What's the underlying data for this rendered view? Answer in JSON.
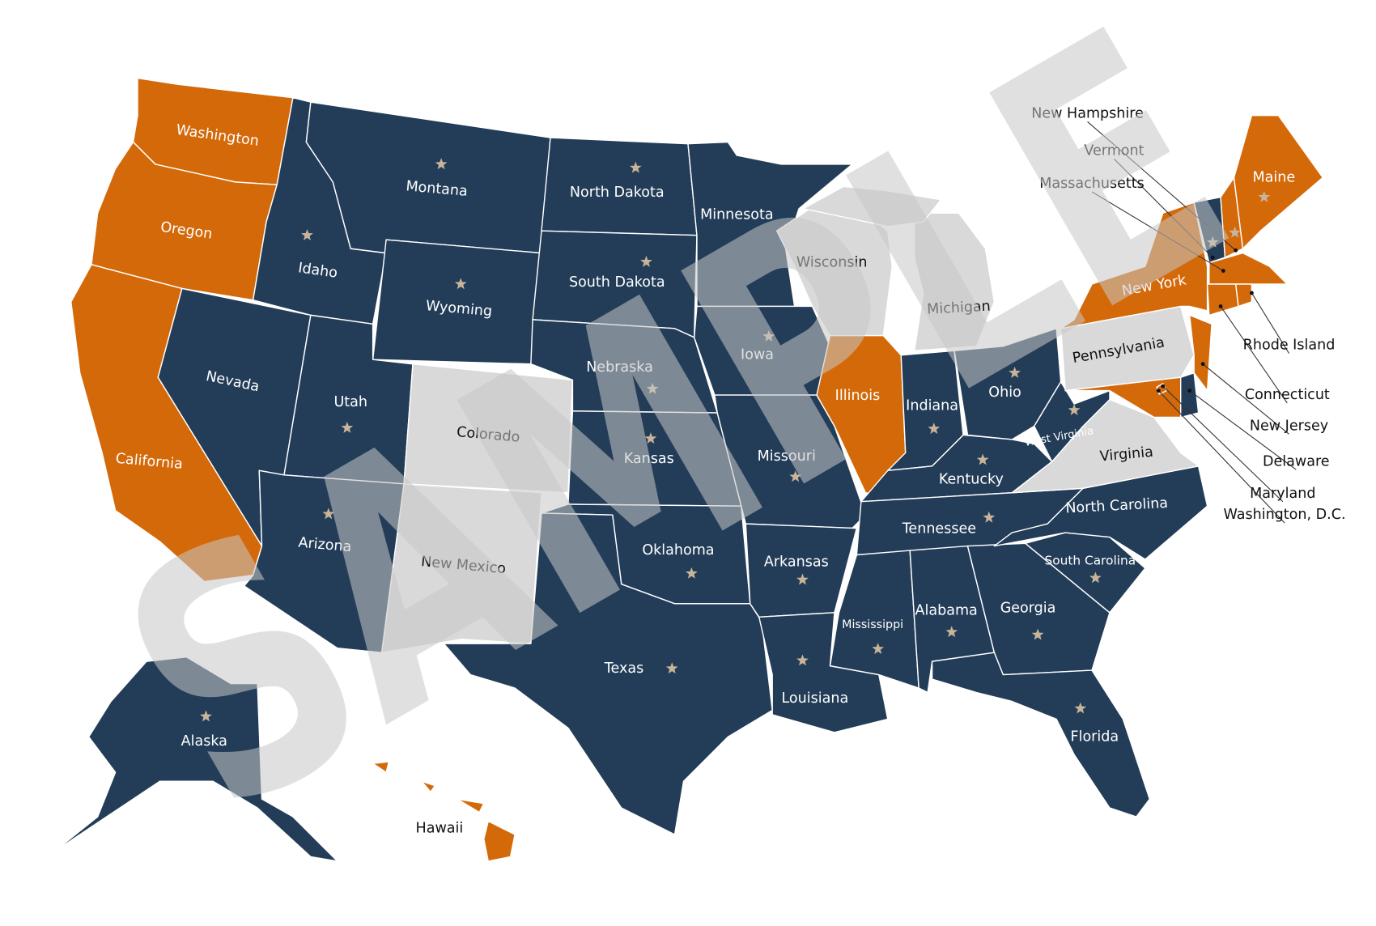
{
  "watermark": "SAMPLE",
  "states": [
    {
      "name": "Washington",
      "color": "#d4690a"
    },
    {
      "name": "Oregon",
      "color": "#d4690a"
    },
    {
      "name": "California",
      "color": "#d4690a"
    },
    {
      "name": "Idaho",
      "color": "#233d58"
    },
    {
      "name": "Nevada",
      "color": "#233d58"
    },
    {
      "name": "Montana",
      "color": "#233d58"
    },
    {
      "name": "Wyoming",
      "color": "#233d58"
    },
    {
      "name": "Utah",
      "color": "#233d58"
    },
    {
      "name": "Arizona",
      "color": "#233d58"
    },
    {
      "name": "Colorado",
      "color": "#d9d9d9"
    },
    {
      "name": "New Mexico",
      "color": "#d9d9d9"
    },
    {
      "name": "North Dakota",
      "color": "#233d58"
    },
    {
      "name": "South Dakota",
      "color": "#233d58"
    },
    {
      "name": "Nebraska",
      "color": "#233d58"
    },
    {
      "name": "Kansas",
      "color": "#233d58"
    },
    {
      "name": "Oklahoma",
      "color": "#233d58"
    },
    {
      "name": "Texas",
      "color": "#233d58"
    },
    {
      "name": "Minnesota",
      "color": "#233d58"
    },
    {
      "name": "Iowa",
      "color": "#233d58"
    },
    {
      "name": "Missouri",
      "color": "#233d58"
    },
    {
      "name": "Arkansas",
      "color": "#233d58"
    },
    {
      "name": "Louisiana",
      "color": "#233d58"
    },
    {
      "name": "Wisconsin",
      "color": "#d9d9d9"
    },
    {
      "name": "Illinois",
      "color": "#d4690a"
    },
    {
      "name": "Michigan",
      "color": "#d9d9d9"
    },
    {
      "name": "Indiana",
      "color": "#233d58"
    },
    {
      "name": "Ohio",
      "color": "#233d58"
    },
    {
      "name": "Kentucky",
      "color": "#233d58"
    },
    {
      "name": "Tennessee",
      "color": "#233d58"
    },
    {
      "name": "Mississippi",
      "color": "#233d58"
    },
    {
      "name": "Alabama",
      "color": "#233d58"
    },
    {
      "name": "Georgia",
      "color": "#233d58"
    },
    {
      "name": "Florida",
      "color": "#233d58"
    },
    {
      "name": "South Carolina",
      "color": "#233d58"
    },
    {
      "name": "North Carolina",
      "color": "#233d58"
    },
    {
      "name": "Virginia",
      "color": "#d9d9d9"
    },
    {
      "name": "West Virginia",
      "color": "#233d58"
    },
    {
      "name": "Pennsylvania",
      "color": "#d9d9d9"
    },
    {
      "name": "New York",
      "color": "#d4690a"
    },
    {
      "name": "Maryland",
      "color": "#d4690a"
    },
    {
      "name": "Delaware",
      "color": "#233d58"
    },
    {
      "name": "New Jersey",
      "color": "#d4690a"
    },
    {
      "name": "Vermont",
      "color": "#233d58"
    },
    {
      "name": "New Hampshire",
      "color": "#d4690a"
    },
    {
      "name": "Maine",
      "color": "#d4690a"
    },
    {
      "name": "Massachusetts",
      "color": "#d4690a"
    },
    {
      "name": "Connecticut",
      "color": "#d4690a"
    },
    {
      "name": "Rhode Island",
      "color": "#d4690a"
    },
    {
      "name": "Washington, D.C.",
      "color": "#d4690a"
    },
    {
      "name": "Alaska",
      "color": "#233d58"
    },
    {
      "name": "Hawaii",
      "color": "#d4690a"
    }
  ]
}
